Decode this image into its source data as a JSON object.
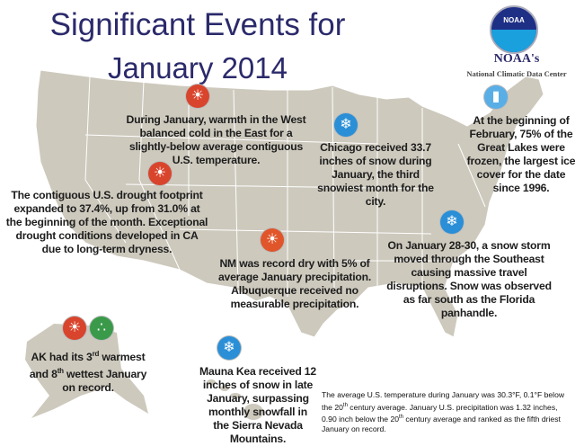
{
  "title": {
    "line1": "Significant Events for",
    "line2": "January 2014"
  },
  "logo": {
    "emblem": "NOAA",
    "name": "NOAA's",
    "subtitle": "National Climatic Data Center"
  },
  "events": {
    "warmth": "During January, warmth in the West balanced cold in the East for a slightly-below average contiguous U.S. temperature.",
    "chicago": "Chicago received 33.7 inches of snow during January, the third snowiest month for the city.",
    "great_lakes": "At the beginning of February, 75% of the Great Lakes were frozen, the largest ice cover for the date since 1996.",
    "drought": "The contiguous U.S. drought footprint expanded to 37.4%, up from 31.0% at the beginning of the month. Exceptional drought conditions developed in CA due to long-term dryness.",
    "nm": "NM was record dry with 5% of average January precipitation. Albuquerque received no measurable precipitation.",
    "southeast": "On January 28-30, a snow storm moved through the Southeast causing massive travel disruptions. Snow was observed as far south as the Florida panhandle.",
    "ak": {
      "p1": "AK had its 3",
      "s1": "rd",
      "p2": " warmest and 8",
      "s2": "th",
      "p3": " wettest January on record."
    },
    "mauna_kea": "Mauna Kea received 12 inches of snow in late January, surpassing monthly snowfall in the Sierra Nevada Mountains."
  },
  "footnote": {
    "p1": "The average U.S. temperature during January was 30.3°F, 0.1°F below the 20",
    "s1": "th",
    "p2": " century average. January U.S. precipitation was 1.32 inches, 0.90 inch below the 20",
    "s2": "th",
    "p3": " century average and ranked as the fifth driest January on record."
  },
  "colors": {
    "title": "#2b2a6b",
    "land": "#cdc9bd",
    "warm": "#d9442c",
    "snow": "#2a8fd6",
    "wet": "#3a9a4a"
  }
}
